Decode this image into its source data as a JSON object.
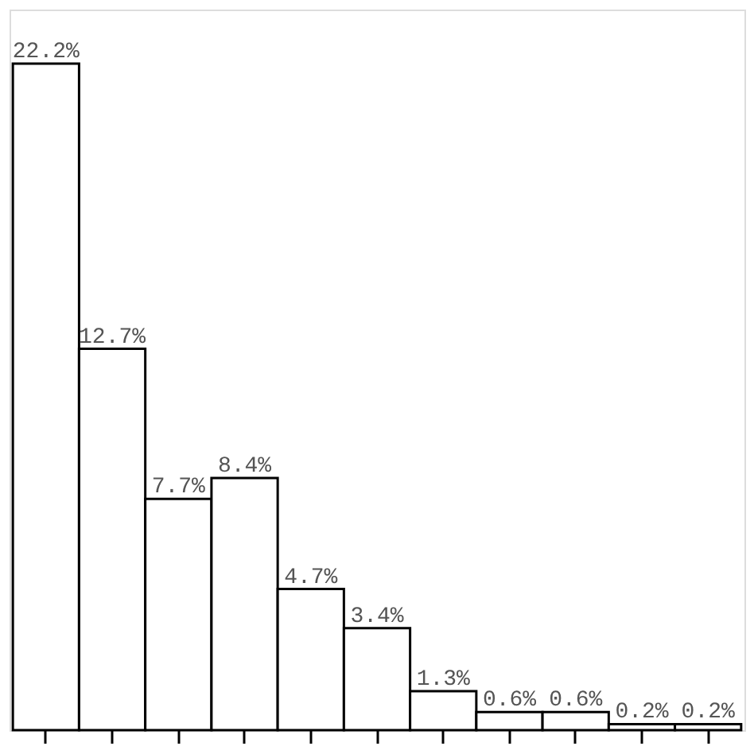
{
  "chart_data": {
    "type": "bar",
    "categories": [
      null,
      null,
      null,
      null,
      null,
      null,
      null,
      null,
      null,
      null,
      null
    ],
    "values": [
      22.2,
      12.7,
      7.7,
      8.4,
      4.7,
      3.4,
      1.3,
      0.6,
      0.6,
      0.2,
      0.2
    ],
    "value_labels": [
      "22.2%",
      "12.7%",
      "7.7%",
      "8.4%",
      "4.7%",
      "3.4%",
      "1.3%",
      "0.6%",
      "0.6%",
      "0.2%",
      "0.2%"
    ],
    "color": "#ffffff",
    "tick_labels": false,
    "grid": false
  }
}
